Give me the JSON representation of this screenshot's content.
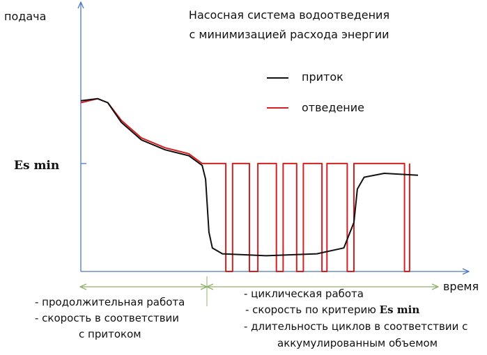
{
  "chart_data": {
    "type": "line",
    "title_line1": "Насосная система водоотведения",
    "title_line2": "с минимизацией расхода энергии",
    "ylabel": "подача",
    "xlabel": "время",
    "y_tick_label": "Es min",
    "y_tick_value": 0.55,
    "xlim": [
      0,
      100
    ],
    "ylim": [
      0,
      1
    ],
    "legend": {
      "position": "top-right",
      "entries": [
        {
          "label": "приток",
          "color": "#111111"
        },
        {
          "label": "отведение",
          "color": "#d42020"
        }
      ]
    },
    "series": [
      {
        "name": "приток",
        "color": "#111111",
        "points": [
          [
            0,
            0.87
          ],
          [
            5,
            0.88
          ],
          [
            8,
            0.86
          ],
          [
            12,
            0.76
          ],
          [
            18,
            0.67
          ],
          [
            25,
            0.62
          ],
          [
            32,
            0.59
          ],
          [
            36,
            0.54
          ],
          [
            37,
            0.47
          ],
          [
            38,
            0.2
          ],
          [
            39,
            0.12
          ],
          [
            42,
            0.09
          ],
          [
            55,
            0.08
          ],
          [
            70,
            0.09
          ],
          [
            78,
            0.12
          ],
          [
            81,
            0.25
          ],
          [
            82,
            0.42
          ],
          [
            84,
            0.48
          ],
          [
            90,
            0.5
          ],
          [
            100,
            0.49
          ]
        ]
      },
      {
        "name": "отведение",
        "color": "#d42020",
        "points": [
          [
            0,
            0.86
          ],
          [
            5,
            0.88
          ],
          [
            8,
            0.86
          ],
          [
            12,
            0.77
          ],
          [
            18,
            0.68
          ],
          [
            25,
            0.63
          ],
          [
            32,
            0.6
          ],
          [
            36,
            0.55
          ],
          [
            43,
            0.55
          ],
          [
            43,
            0
          ],
          [
            45,
            0
          ],
          [
            45,
            0.55
          ],
          [
            50,
            0.55
          ],
          [
            50,
            0
          ],
          [
            52.5,
            0
          ],
          [
            52.5,
            0.55
          ],
          [
            58,
            0.55
          ],
          [
            58,
            0
          ],
          [
            60,
            0
          ],
          [
            60,
            0.55
          ],
          [
            64,
            0.55
          ],
          [
            64,
            0
          ],
          [
            66,
            0
          ],
          [
            66,
            0.55
          ],
          [
            71.5,
            0.55
          ],
          [
            71.5,
            0
          ],
          [
            73,
            0
          ],
          [
            73,
            0.55
          ],
          [
            79,
            0.55
          ],
          [
            79,
            0
          ],
          [
            81,
            0
          ],
          [
            81,
            0.55
          ],
          [
            96,
            0.55
          ],
          [
            96,
            0
          ],
          [
            97.5,
            0
          ],
          [
            97.5,
            0.55
          ]
        ]
      }
    ]
  },
  "annotations": {
    "left_1": "- продолжительная работа",
    "left_2": "- скорость в соответствии",
    "left_3": "с притоком",
    "right_1": "- циклическая работа",
    "right_2a": "- скорость по критерию ",
    "right_2b": "Es min",
    "right_3": "- длительность циклов в соответствии с",
    "right_4": "аккумулированным объемом"
  },
  "colors": {
    "axis": "#4a78c2",
    "span_arrow": "#8fb16a",
    "inflow": "#111111",
    "outflow": "#d42020"
  }
}
